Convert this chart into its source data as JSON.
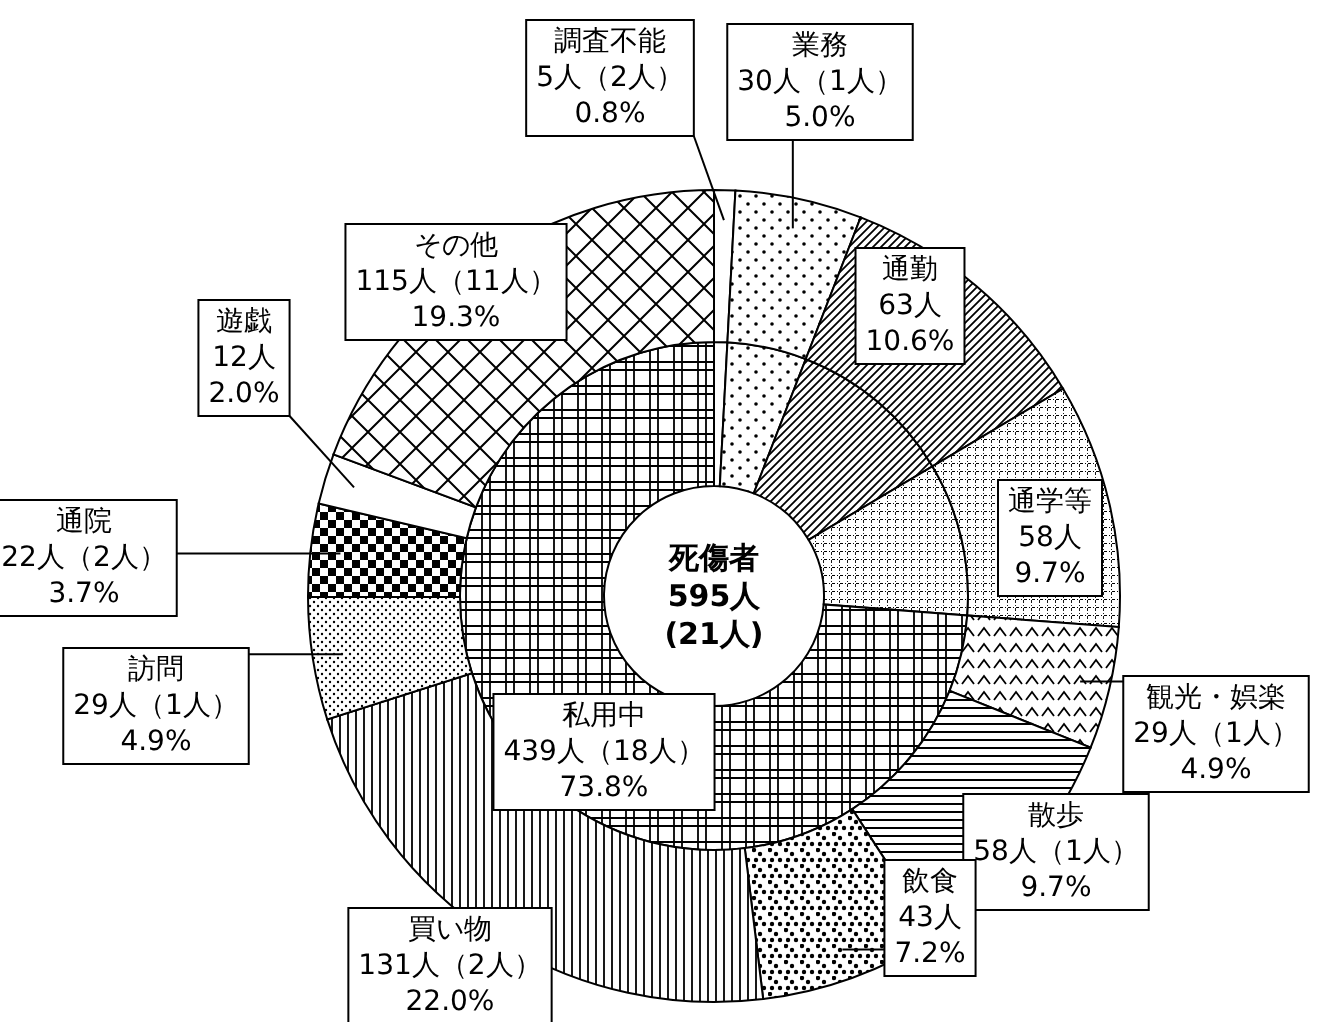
{
  "chart_data": [
    {
      "type": "donut",
      "annotations": [
        "死傷者",
        "595人",
        "(21人)"
      ],
      "categories": [
        null,
        null,
        null,
        null,
        "私用中"
      ],
      "values": [
        5,
        30,
        63,
        58,
        439
      ],
      "value_labels": [
        null,
        null,
        null,
        null,
        "439人（18人）\n73.8%"
      ]
    },
    {
      "type": "donut",
      "categories": [
        "調査不能",
        "業務",
        "通勤",
        "通学等",
        "観光・娯楽",
        "散歩",
        "飲食",
        "買い物",
        "訪問",
        "通院",
        "遊戯",
        "その他"
      ],
      "values": [
        5,
        30,
        63,
        58,
        29,
        58,
        43,
        131,
        29,
        22,
        12,
        115
      ],
      "value_labels": [
        "5人（2人）\n0.8%",
        "30人（1人）\n5.0%",
        "63人\n10.6%",
        "58人\n9.7%",
        "29人（1人）\n4.9%",
        "58人（1人）\n9.7%",
        "43人\n7.2%",
        "131人（2人）\n22.0%",
        "29人（1人）\n4.9%",
        "22人（2人）\n3.7%",
        "12人\n2.0%",
        "115人（11人）\n19.3%"
      ]
    }
  ]
}
